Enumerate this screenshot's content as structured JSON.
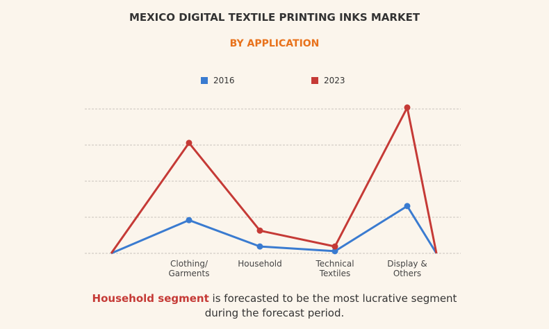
{
  "chart_data": {
    "type": "line",
    "title": "MEXICO DIGITAL TEXTILE PRINTING INKS MARKET",
    "subtitle": "BY APPLICATION",
    "categories": [
      null,
      "Clothing/\nGarments",
      "Household",
      "Technical\nTextiles",
      "Display &\nOthers",
      null
    ],
    "series": [
      {
        "name": "2016",
        "color": "#3a7bd0",
        "values": [
          0,
          0.92,
          0.19,
          0.06,
          1.31,
          0
        ]
      },
      {
        "name": "2023",
        "color": "#c53a36",
        "values": [
          0,
          3.06,
          0.63,
          0.19,
          4.04,
          0
        ]
      }
    ],
    "ylim": [
      0,
      4
    ],
    "yticks": [
      0,
      1,
      2,
      3,
      4
    ],
    "grid": true
  },
  "footer": {
    "highlight": "Household segment",
    "text": " is forecasted to be the most lucrative segment\nduring the forecast period."
  }
}
